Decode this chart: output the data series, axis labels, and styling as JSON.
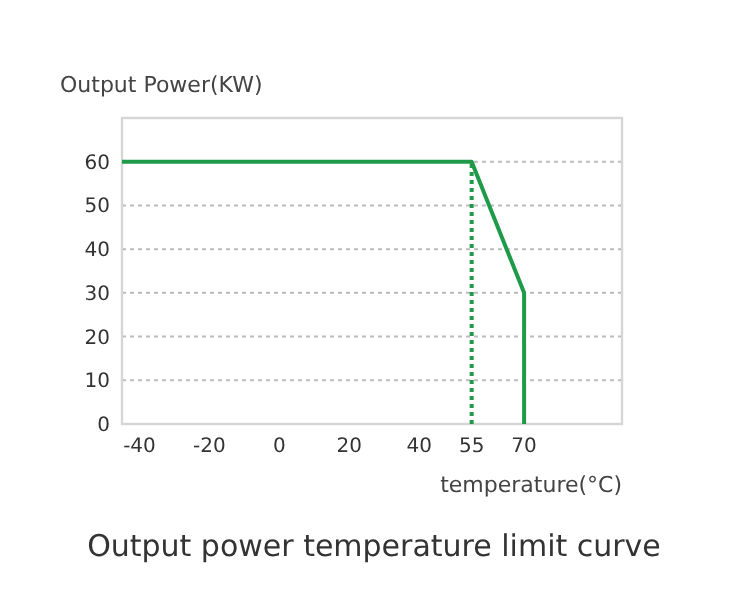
{
  "chart_data": {
    "type": "line",
    "title": "Output power temperature limit curve",
    "ylabel": "Output Power(KW)",
    "xlabel": "temperature(°C)",
    "xlim": [
      -45,
      98
    ],
    "ylim": [
      0,
      70
    ],
    "xticks": [
      -40,
      -20,
      0,
      20,
      40,
      55,
      70
    ],
    "yticks": [
      0,
      10,
      20,
      30,
      40,
      50,
      60
    ],
    "grid": "y",
    "marker": "none",
    "series": [
      {
        "color": "#1e9a4a",
        "x": [
          -45,
          55,
          70,
          70
        ],
        "values": [
          60,
          60,
          30,
          0
        ],
        "line_style": "solid"
      },
      {
        "color": "#1e9a4a",
        "x": [
          55,
          55
        ],
        "values": [
          0,
          60
        ],
        "line_style": "dotted"
      }
    ]
  }
}
